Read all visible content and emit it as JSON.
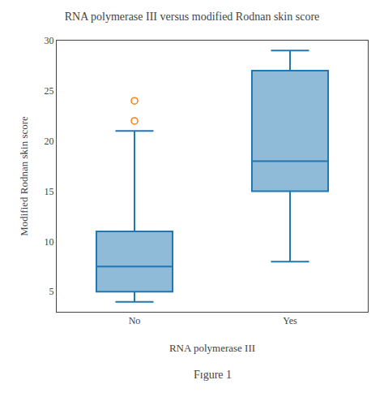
{
  "chart_data": {
    "type": "box",
    "title": "RNA polymerase III versus modified Rodnan skin score",
    "xlabel": "RNA polymerase III",
    "ylabel": "Modified Rodnan skin score",
    "annotations": [
      "Fɪgure 1"
    ],
    "categories": [
      "No",
      "Yes"
    ],
    "boxes": [
      {
        "median": 7.5,
        "q1": 5.0,
        "q3": 11.0,
        "whisker_low": 4.0,
        "whisker_high": 21.0,
        "outliers": [
          22.0,
          24.0
        ]
      },
      {
        "median": 18.0,
        "q1": 15.0,
        "q3": 27.0,
        "whisker_low": 8.0,
        "whisker_high": 29.0,
        "outliers": []
      }
    ],
    "ylim": [
      3,
      30
    ],
    "yticks": [
      5,
      10,
      15,
      20,
      25,
      30
    ],
    "grid": false
  }
}
